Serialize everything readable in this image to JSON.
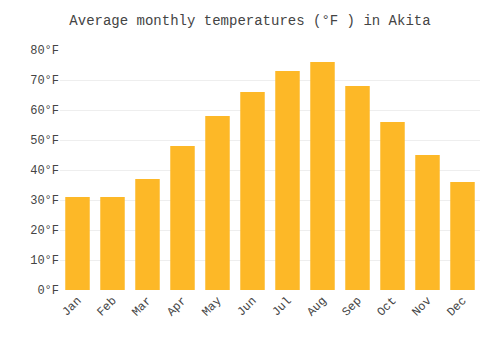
{
  "chart_data": {
    "type": "bar",
    "title": "Average monthly temperatures (°F ) in Akita",
    "categories": [
      "Jan",
      "Feb",
      "Mar",
      "Apr",
      "May",
      "Jun",
      "Jul",
      "Aug",
      "Sep",
      "Oct",
      "Nov",
      "Dec"
    ],
    "values": [
      31,
      31,
      37,
      48,
      58,
      66,
      73,
      76,
      68,
      56,
      45,
      36
    ],
    "color": "#FDB827",
    "ylim": [
      0,
      80
    ],
    "yticks": [
      {
        "value": 0,
        "label": "0°F"
      },
      {
        "value": 10,
        "label": "10°F"
      },
      {
        "value": 20,
        "label": "20°F"
      },
      {
        "value": 30,
        "label": "30°F"
      },
      {
        "value": 40,
        "label": "40°F"
      },
      {
        "value": 50,
        "label": "50°F"
      },
      {
        "value": 60,
        "label": "60°F"
      },
      {
        "value": 70,
        "label": "70°F"
      },
      {
        "value": 80,
        "label": "80°F"
      }
    ],
    "grid": true
  }
}
